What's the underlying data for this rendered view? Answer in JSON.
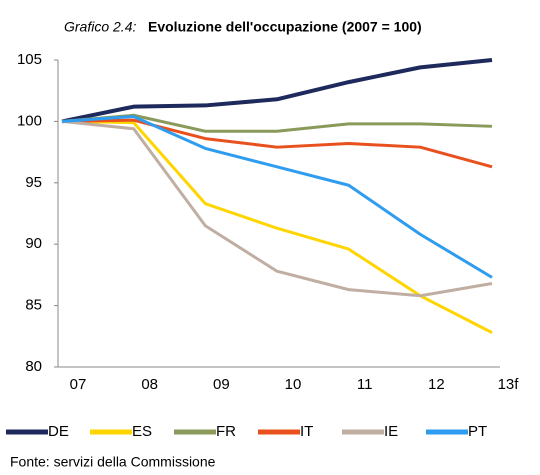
{
  "chart_data": {
    "type": "line",
    "title_number": "Grafico 2.4:",
    "title": "Evoluzione dell'occupazione (2007 = 100)",
    "categories": [
      "07",
      "08",
      "09",
      "10",
      "11",
      "12",
      "13f"
    ],
    "series": [
      {
        "name": "DE",
        "color": "#1f2a5c",
        "values": [
          100,
          101.2,
          101.3,
          101.8,
          103.2,
          104.4,
          105.0
        ]
      },
      {
        "name": "ES",
        "color": "#ffd500",
        "values": [
          100,
          99.9,
          93.3,
          91.3,
          89.6,
          85.8,
          82.8
        ]
      },
      {
        "name": "FR",
        "color": "#8a9a5b",
        "values": [
          100,
          100.5,
          99.2,
          99.2,
          99.8,
          99.8,
          99.6
        ]
      },
      {
        "name": "IT",
        "color": "#e8501e",
        "values": [
          100,
          100.1,
          98.6,
          97.9,
          98.2,
          97.9,
          96.3
        ]
      },
      {
        "name": "IE",
        "color": "#c0aea3",
        "values": [
          100,
          99.4,
          91.5,
          87.8,
          86.3,
          85.8,
          86.8
        ]
      },
      {
        "name": "PT",
        "color": "#2e9cef",
        "values": [
          100,
          100.4,
          97.8,
          96.3,
          94.8,
          90.8,
          87.3
        ]
      }
    ],
    "ylim": [
      80,
      105
    ],
    "yticks": [
      80,
      85,
      90,
      95,
      100,
      105
    ],
    "grid": false,
    "legend": "bottom",
    "source": "Fonte: servizi della Commissione"
  }
}
